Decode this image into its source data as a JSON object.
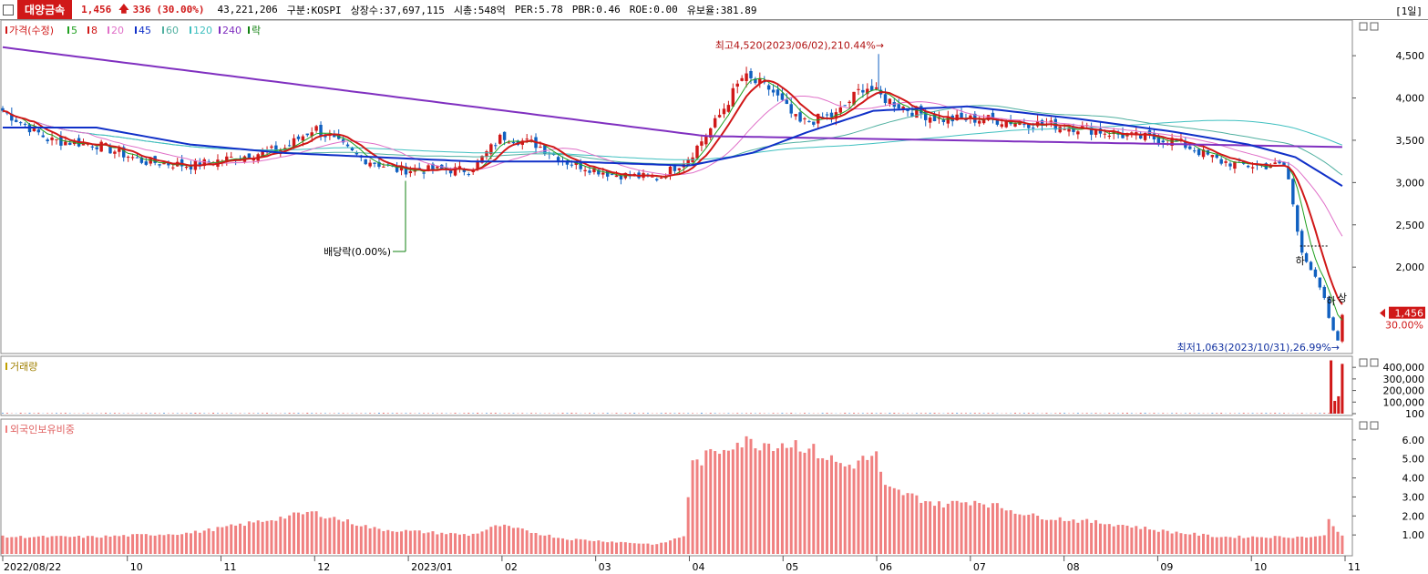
{
  "header": {
    "stock_name": "대양금속",
    "price": "1,456",
    "change": "336",
    "change_pct": "(30.00%)",
    "volume": "43,221,206",
    "market": "구분:KOSPI",
    "listed_shares": "상장수:37,697,115",
    "market_cap": "시총:548억",
    "per": "PER:5.78",
    "pbr": "PBR:0.46",
    "roe": "ROE:0.00",
    "reserve": "유보율:381.89",
    "period": "[1일]"
  },
  "chart_data": [
    {
      "type": "candlestick",
      "legend": [
        "가격(수정)",
        "5",
        "8",
        "20",
        "45",
        "60",
        "120",
        "240",
        "락"
      ],
      "legend_colors": [
        "#d01818",
        "#20a020",
        "#d01818",
        "#e070c8",
        "#1030c8",
        "#50b0a0",
        "#40c0c0",
        "#8030c0",
        "#108010"
      ],
      "y_ticks": [
        2000,
        2500,
        3000,
        3500,
        4000,
        4500
      ],
      "y_tick_labels": [
        "2,000",
        "2,500",
        "3,000",
        "3,500",
        "4,000",
        "4,500"
      ],
      "ylim": [
        1000,
        4900
      ],
      "x_tick_labels": [
        "2022/08/22",
        "10",
        "11",
        "12",
        "2023/01",
        "02",
        "03",
        "04",
        "05",
        "06",
        "07",
        "08",
        "09",
        "10",
        "11"
      ],
      "x_ticks_month_index": [
        0,
        1.33,
        2.33,
        3.33,
        4.33,
        5.33,
        6.33,
        7.33,
        8.33,
        9.33,
        10.33,
        11.33,
        12.33,
        13.33,
        14.33
      ],
      "series_close_keypoints": [
        {
          "m": 0,
          "v": 3850
        },
        {
          "m": 0.5,
          "v": 3500
        },
        {
          "m": 1,
          "v": 3450
        },
        {
          "m": 1.5,
          "v": 3250
        },
        {
          "m": 2,
          "v": 3200
        },
        {
          "m": 2.5,
          "v": 3300
        },
        {
          "m": 3,
          "v": 3400
        },
        {
          "m": 3.33,
          "v": 3650
        },
        {
          "m": 3.8,
          "v": 3300
        },
        {
          "m": 4.2,
          "v": 3150
        },
        {
          "m": 5,
          "v": 3150
        },
        {
          "m": 5.33,
          "v": 3550
        },
        {
          "m": 5.7,
          "v": 3450
        },
        {
          "m": 6,
          "v": 3250
        },
        {
          "m": 6.5,
          "v": 3100
        },
        {
          "m": 7,
          "v": 3050
        },
        {
          "m": 7.33,
          "v": 3300
        },
        {
          "m": 7.6,
          "v": 3700
        },
        {
          "m": 7.9,
          "v": 4250
        },
        {
          "m": 8.2,
          "v": 4100
        },
        {
          "m": 8.5,
          "v": 3700
        },
        {
          "m": 8.9,
          "v": 3800
        },
        {
          "m": 9.2,
          "v": 4150
        },
        {
          "m": 9.4,
          "v": 4000
        },
        {
          "m": 9.7,
          "v": 3850
        },
        {
          "m": 10,
          "v": 3750
        },
        {
          "m": 10.5,
          "v": 3750
        },
        {
          "m": 11,
          "v": 3700
        },
        {
          "m": 11.5,
          "v": 3650
        },
        {
          "m": 12,
          "v": 3550
        },
        {
          "m": 12.5,
          "v": 3500
        },
        {
          "m": 13,
          "v": 3250
        },
        {
          "m": 13.3,
          "v": 3200
        },
        {
          "m": 13.7,
          "v": 3200
        },
        {
          "m": 13.85,
          "v": 2250
        },
        {
          "m": 14.1,
          "v": 1650
        },
        {
          "m": 14.18,
          "v": 1300
        },
        {
          "m": 14.25,
          "v": 1120
        },
        {
          "m": 14.3,
          "v": 1456
        }
      ],
      "ma_240_keypoints": [
        {
          "m": 0,
          "v": 4600
        },
        {
          "m": 7.5,
          "v": 3550
        },
        {
          "m": 14.3,
          "v": 3420
        }
      ],
      "ma_45_keypoints": [
        {
          "m": 0,
          "v": 3650
        },
        {
          "m": 1,
          "v": 3650
        },
        {
          "m": 2,
          "v": 3450
        },
        {
          "m": 3,
          "v": 3350
        },
        {
          "m": 4,
          "v": 3300
        },
        {
          "m": 5,
          "v": 3250
        },
        {
          "m": 6,
          "v": 3250
        },
        {
          "m": 7.33,
          "v": 3200
        },
        {
          "m": 8,
          "v": 3350
        },
        {
          "m": 8.6,
          "v": 3600
        },
        {
          "m": 9.3,
          "v": 3850
        },
        {
          "m": 10.3,
          "v": 3900
        },
        {
          "m": 11.5,
          "v": 3750
        },
        {
          "m": 12.5,
          "v": 3600
        },
        {
          "m": 13.3,
          "v": 3450
        },
        {
          "m": 13.8,
          "v": 3300
        },
        {
          "m": 14.3,
          "v": 2960
        }
      ],
      "annotations": {
        "high": "최고4,520(2023/06/02),210.44%→",
        "low": "최저1,063(2023/10/31),26.99%→",
        "dividend": "배당락(0.00%)",
        "limit_down": "하",
        "limit_up": "상",
        "current_price": "1,456",
        "current_pct": "30.00%"
      }
    },
    {
      "type": "bar",
      "legend": [
        "거래량"
      ],
      "y_tick_labels": [
        "100",
        "100,000",
        "200,000",
        "300,000",
        "400,000"
      ],
      "y_ticks": [
        100,
        100000,
        200000,
        300000,
        400000
      ],
      "ylim": [
        0,
        480000
      ],
      "spikes": [
        {
          "m": 14.18,
          "v": 460000
        },
        {
          "m": 14.22,
          "v": 110000
        },
        {
          "m": 14.26,
          "v": 150000
        },
        {
          "m": 14.3,
          "v": 430000
        }
      ]
    },
    {
      "type": "bar",
      "legend": [
        "외국인보유비중"
      ],
      "y_tick_labels": [
        "1.00",
        "2.00",
        "3.00",
        "4.00",
        "5.00",
        "6.00"
      ],
      "y_ticks": [
        1,
        2,
        3,
        4,
        5,
        6
      ],
      "ylim": [
        0,
        7
      ],
      "keypoints": [
        {
          "m": 0,
          "v": 0.9
        },
        {
          "m": 1,
          "v": 0.9
        },
        {
          "m": 2,
          "v": 1.1
        },
        {
          "m": 2.5,
          "v": 1.5
        },
        {
          "m": 3.3,
          "v": 2.2
        },
        {
          "m": 4,
          "v": 1.3
        },
        {
          "m": 5,
          "v": 1.0
        },
        {
          "m": 5.3,
          "v": 1.5
        },
        {
          "m": 6,
          "v": 0.8
        },
        {
          "m": 7,
          "v": 0.5
        },
        {
          "m": 7.3,
          "v": 1.0
        },
        {
          "m": 7.33,
          "v": 4.6
        },
        {
          "m": 7.8,
          "v": 5.9
        },
        {
          "m": 8.5,
          "v": 5.8
        },
        {
          "m": 9,
          "v": 4.6
        },
        {
          "m": 9.33,
          "v": 5.2
        },
        {
          "m": 9.4,
          "v": 3.5
        },
        {
          "m": 10,
          "v": 2.6
        },
        {
          "m": 10.4,
          "v": 2.8
        },
        {
          "m": 11,
          "v": 2.0
        },
        {
          "m": 12,
          "v": 1.5
        },
        {
          "m": 12.4,
          "v": 1.2
        },
        {
          "m": 13,
          "v": 0.9
        },
        {
          "m": 14.1,
          "v": 0.9
        },
        {
          "m": 14.15,
          "v": 1.8
        },
        {
          "m": 14.3,
          "v": 1.0
        }
      ]
    }
  ]
}
